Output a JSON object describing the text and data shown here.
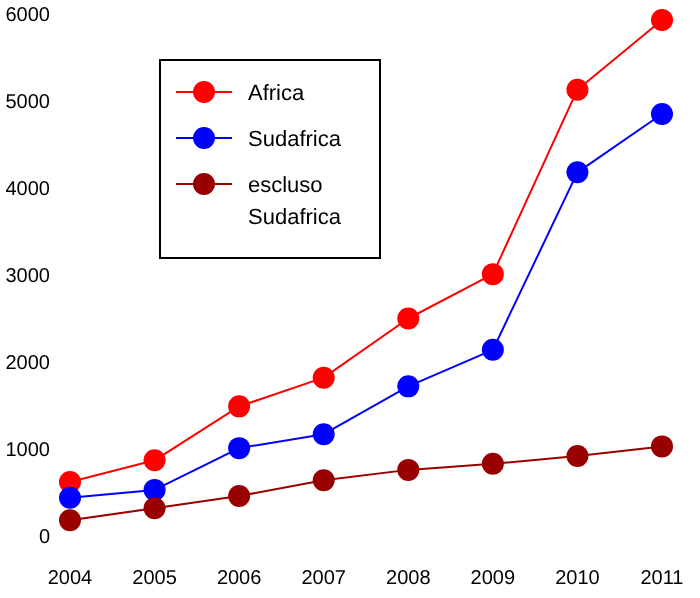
{
  "chart_data": {
    "type": "line",
    "categories": [
      "2004",
      "2005",
      "2006",
      "2007",
      "2008",
      "2009",
      "2010",
      "2011"
    ],
    "series": [
      {
        "name": "Africa",
        "color": "#ff0000",
        "values": [
          620,
          870,
          1490,
          1820,
          2500,
          3010,
          5130,
          5930
        ]
      },
      {
        "name": "Sudafrica",
        "color": "#0000ff",
        "values": [
          440,
          530,
          1010,
          1170,
          1720,
          2140,
          4180,
          4850
        ]
      },
      {
        "name": "escluso Sudafrica",
        "color": "#990000",
        "values": [
          180,
          320,
          460,
          640,
          760,
          830,
          920,
          1030
        ]
      }
    ],
    "ylim": [
      0,
      6000
    ],
    "yticks": [
      0,
      1000,
      2000,
      3000,
      4000,
      5000,
      6000
    ],
    "grid": false,
    "legend": "top left",
    "marker": "circle",
    "line_style": "solid"
  }
}
